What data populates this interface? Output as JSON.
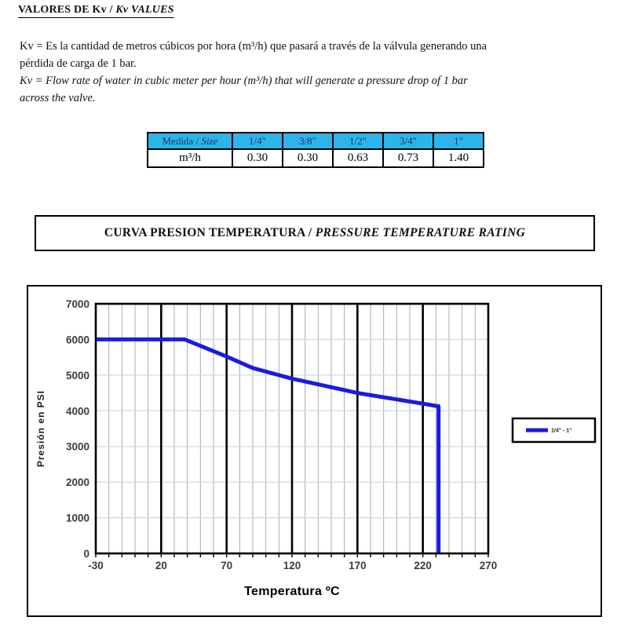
{
  "header": {
    "title_es": "VALORES DE Kv / ",
    "title_en": "Kv VALUES"
  },
  "intro": {
    "es_lines": [
      "Kv = Es la cantidad de metros cúbicos por hora (m³/h) que pasará a través de la válvula generando una",
      "pérdida de carga de 1 bar."
    ],
    "en_lines": [
      "Kv = Flow rate of water in cubic meter per hour (m³/h) that will generate a pressure drop of 1 bar",
      "across the valve."
    ]
  },
  "kv_table": {
    "header_label_es": "Medida / ",
    "header_label_en": "Size",
    "row_label": "m³/h",
    "sizes": [
      "1/4\"",
      "3/8\"",
      "1/2\"",
      "3/4\"",
      "1\""
    ],
    "values": [
      "0.30",
      "0.30",
      "0.63",
      "0.73",
      "1.40"
    ],
    "header_bg": "#2db4e8",
    "header_text": "#17375d"
  },
  "section_title": {
    "es": "CURVA PRESION TEMPERATURA / ",
    "en": "PRESSURE TEMPERATURE RATING"
  },
  "chart_data": {
    "type": "line",
    "title": "",
    "xlabel": "Temperatura ºC",
    "ylabel": "Presión en PSI",
    "xlim": [
      -30,
      270
    ],
    "ylim": [
      0,
      7000
    ],
    "x_ticks": [
      -30,
      20,
      70,
      120,
      170,
      220,
      270
    ],
    "y_ticks": [
      0,
      1000,
      2000,
      3000,
      4000,
      5000,
      6000,
      7000
    ],
    "x_minor_step": 10,
    "grid": {
      "minor_color": "#ababab",
      "h_color": "#c9ddf0",
      "major_color": "#000000"
    },
    "legend": {
      "position": "right",
      "entries": [
        "1/4\" - 1\""
      ]
    },
    "series": [
      {
        "name": "1/4\" - 1\"",
        "color": "#1b1be0",
        "points": [
          [
            -30,
            6000
          ],
          [
            38,
            6000
          ],
          [
            70,
            5520
          ],
          [
            90,
            5200
          ],
          [
            120,
            4900
          ],
          [
            170,
            4500
          ],
          [
            220,
            4200
          ],
          [
            231,
            4130
          ],
          [
            232,
            4130
          ],
          [
            232,
            0
          ]
        ]
      }
    ]
  }
}
